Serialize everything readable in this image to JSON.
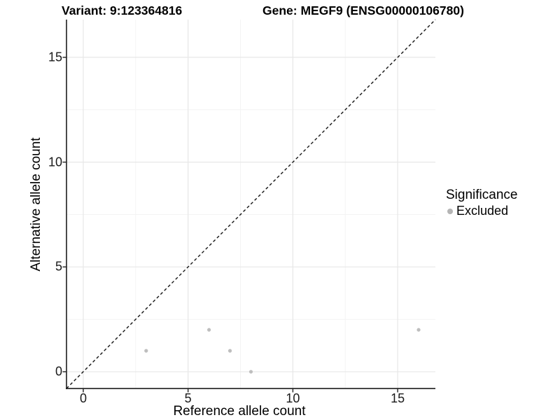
{
  "chart_data": {
    "type": "scatter",
    "titles": {
      "variant": "Variant: 9:123364816",
      "gene": "Gene: MEGF9 (ENSG00000106780)"
    },
    "xlabel": "Reference allele count",
    "ylabel": "Alternative allele count",
    "xlim": [
      -0.8,
      16.8
    ],
    "ylim": [
      -0.8,
      16.8
    ],
    "xticks": [
      0,
      5,
      10,
      15
    ],
    "yticks": [
      0,
      5,
      10,
      15
    ],
    "xticks_minor": [
      2.5,
      7.5,
      12.5
    ],
    "yticks_minor": [
      2.5,
      7.5,
      12.5
    ],
    "grid": {
      "major_color": "#e7e7e7",
      "minor_color": "#f4f4f4"
    },
    "axis_color": "#2b2b2b",
    "identity_line": {
      "style": "dashed",
      "from": [
        -0.8,
        -0.8
      ],
      "to": [
        16.8,
        16.8
      ],
      "color": "#141414"
    },
    "series": [
      {
        "name": "Excluded",
        "color": "#bebebe",
        "points": [
          [
            3,
            1
          ],
          [
            6,
            2
          ],
          [
            7,
            1
          ],
          [
            8,
            0
          ],
          [
            16,
            2
          ]
        ]
      }
    ],
    "legend": {
      "title": "Significance",
      "position": "right",
      "items": [
        {
          "label": "Excluded",
          "color": "#b5b5b5"
        }
      ]
    }
  }
}
